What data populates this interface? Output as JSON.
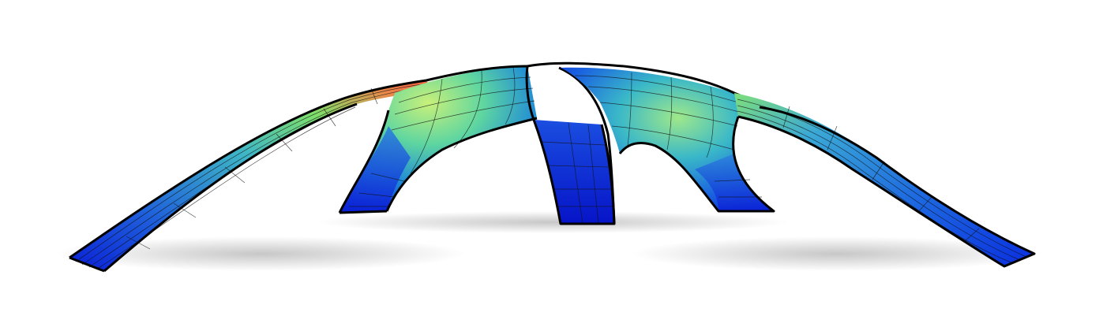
{
  "scene": {
    "subject": "shell-structure",
    "colormap": {
      "name": "stress-colormap",
      "stops": [
        "#0a1fd6",
        "#1e63e0",
        "#2fa8d8",
        "#6fe07a",
        "#e6e65a",
        "#ff6a4a"
      ]
    },
    "background": "#ffffff"
  }
}
